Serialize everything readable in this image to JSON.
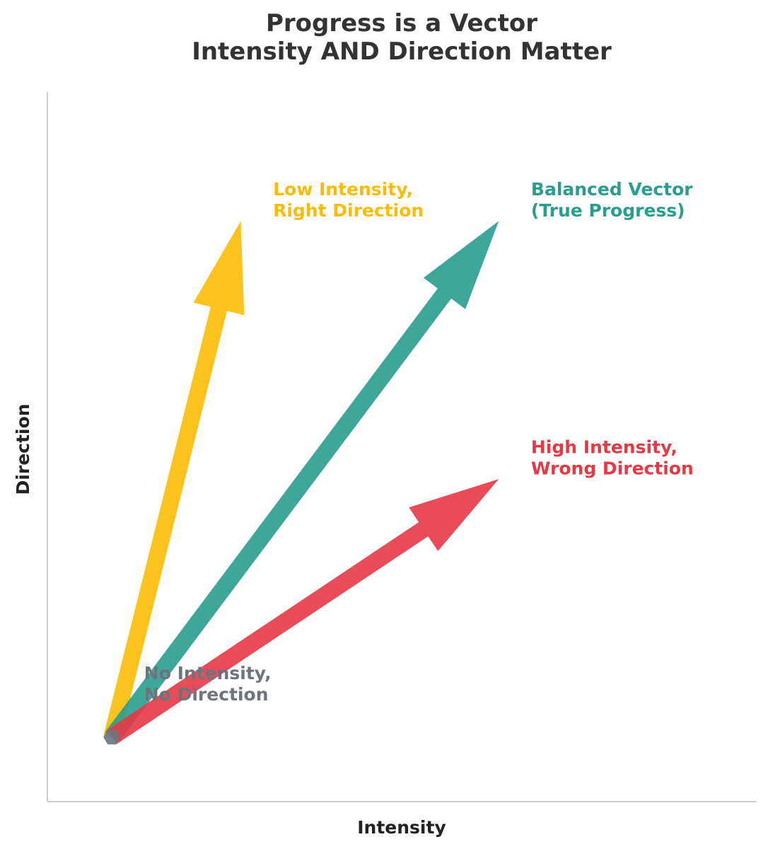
{
  "chart_data": {
    "type": "vector",
    "title_lines": [
      "Progress is a Vector",
      "Intensity AND Direction Matter"
    ],
    "xlabel": "Intensity",
    "ylabel": "Direction",
    "xlim": [
      0,
      11
    ],
    "ylim": [
      0,
      11
    ],
    "grid": false,
    "origin": [
      1,
      1
    ],
    "vectors": [
      {
        "id": "low-intensity",
        "end": [
          3,
          9
        ],
        "color": "#FBBC05",
        "label_lines": [
          "Low Intensity,",
          "Right Direction"
        ],
        "label_at": [
          3.5,
          9.4
        ]
      },
      {
        "id": "balanced",
        "end": [
          7,
          9
        ],
        "color": "#2A9D8F",
        "label_lines": [
          "Balanced Vector",
          "(True Progress)"
        ],
        "label_at": [
          7.5,
          9.4
        ]
      },
      {
        "id": "high-intensity",
        "end": [
          7,
          5
        ],
        "color": "#E63946",
        "label_lines": [
          "High Intensity,",
          "Wrong Direction"
        ],
        "label_at": [
          7.5,
          5.4
        ]
      }
    ],
    "origin_point": {
      "color": "#6C757D",
      "label_lines": [
        "No Intensity,",
        "No Direction"
      ],
      "label_at": [
        1.5,
        1.9
      ]
    }
  }
}
